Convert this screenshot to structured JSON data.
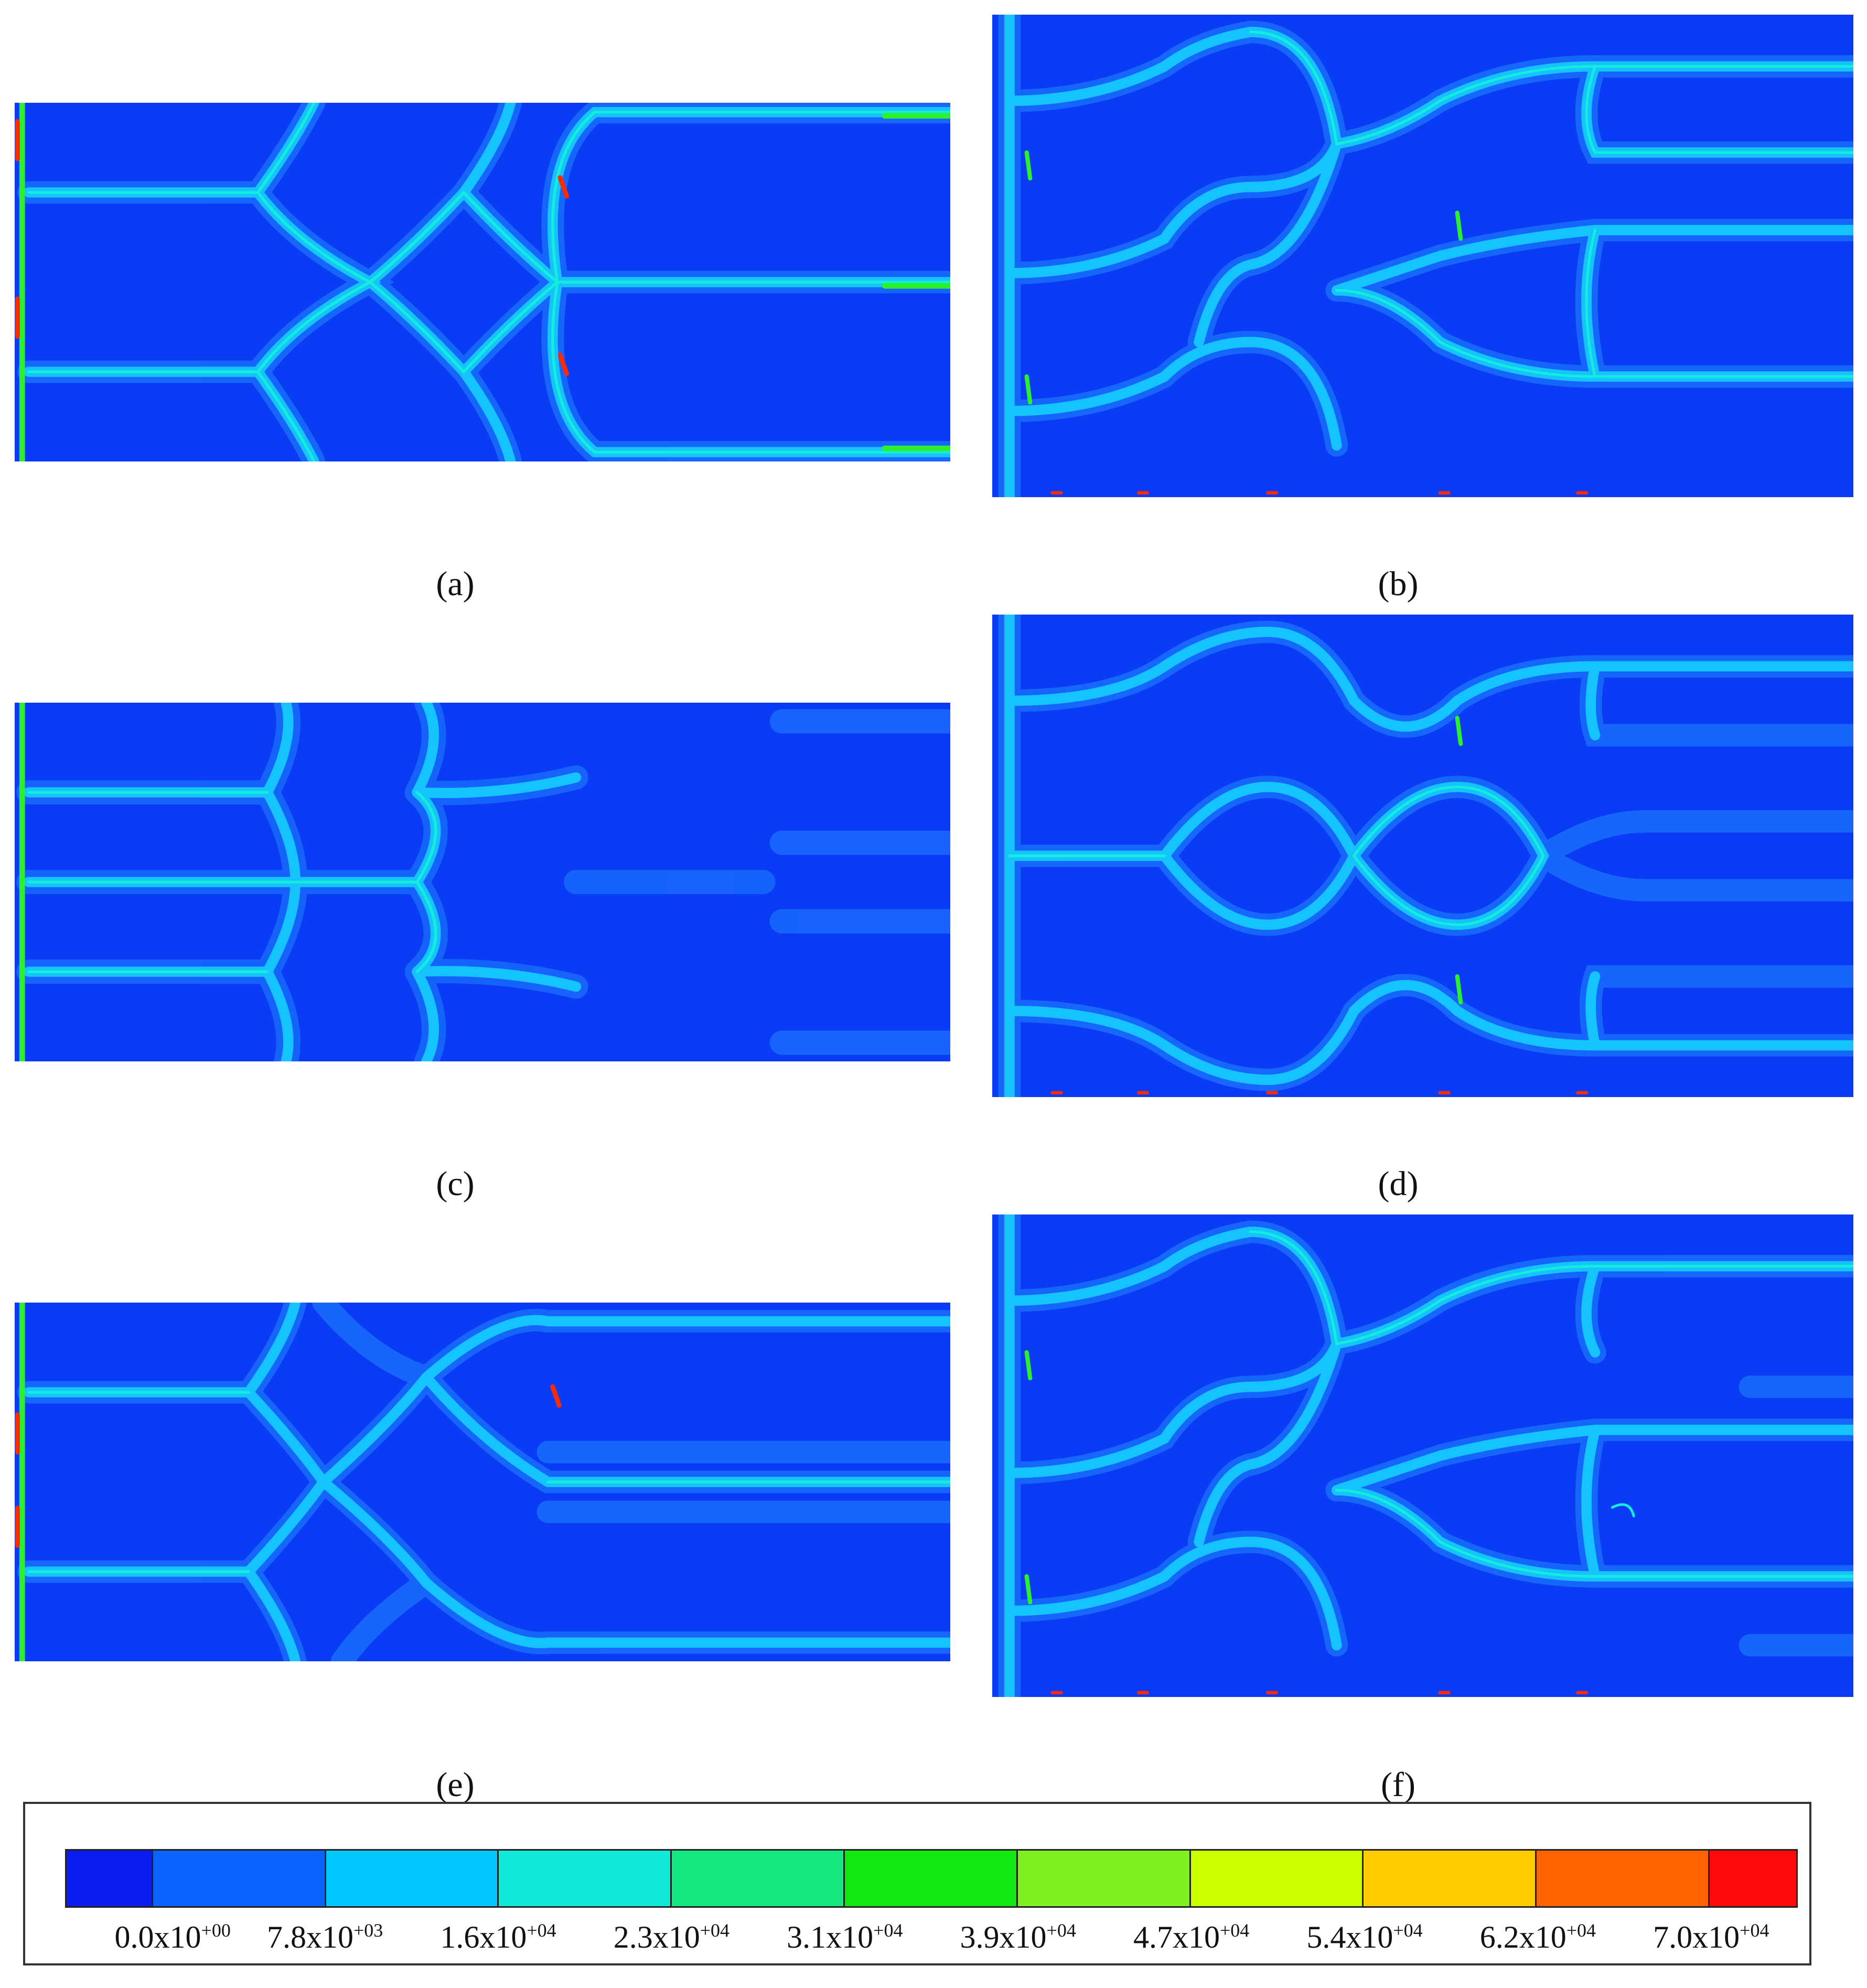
{
  "panels": [
    {
      "id": "a",
      "label": "(a)"
    },
    {
      "id": "b",
      "label": "(b)"
    },
    {
      "id": "c",
      "label": "(c)"
    },
    {
      "id": "d",
      "label": "(d)"
    },
    {
      "id": "e",
      "label": "(e)"
    },
    {
      "id": "f",
      "label": "(f)"
    }
  ],
  "legend": {
    "colors": [
      "#0a1cf0",
      "#0a63ff",
      "#00c8ff",
      "#10e8d8",
      "#14e880",
      "#12e810",
      "#7ff020",
      "#ccff00",
      "#ffcc00",
      "#ff6400",
      "#ff0a0a"
    ],
    "ticks": [
      {
        "mantissa": "0.0x10",
        "exponent": "+00"
      },
      {
        "mantissa": "7.8x10",
        "exponent": "+03"
      },
      {
        "mantissa": "1.6x10",
        "exponent": "+04"
      },
      {
        "mantissa": "2.3x10",
        "exponent": "+04"
      },
      {
        "mantissa": "3.1x10",
        "exponent": "+04"
      },
      {
        "mantissa": "3.9x10",
        "exponent": "+04"
      },
      {
        "mantissa": "4.7x10",
        "exponent": "+04"
      },
      {
        "mantissa": "5.4x10",
        "exponent": "+04"
      },
      {
        "mantissa": "6.2x10",
        "exponent": "+04"
      },
      {
        "mantissa": "7.0x10",
        "exponent": "+04"
      }
    ]
  },
  "colors": {
    "background": "#0a3cf5",
    "band_outer": "#1c74ff",
    "band_mid": "#15c4ff",
    "band_core": "#14ecdc",
    "hot_green": "#2cf02c",
    "hot_red": "#ff2a00"
  }
}
